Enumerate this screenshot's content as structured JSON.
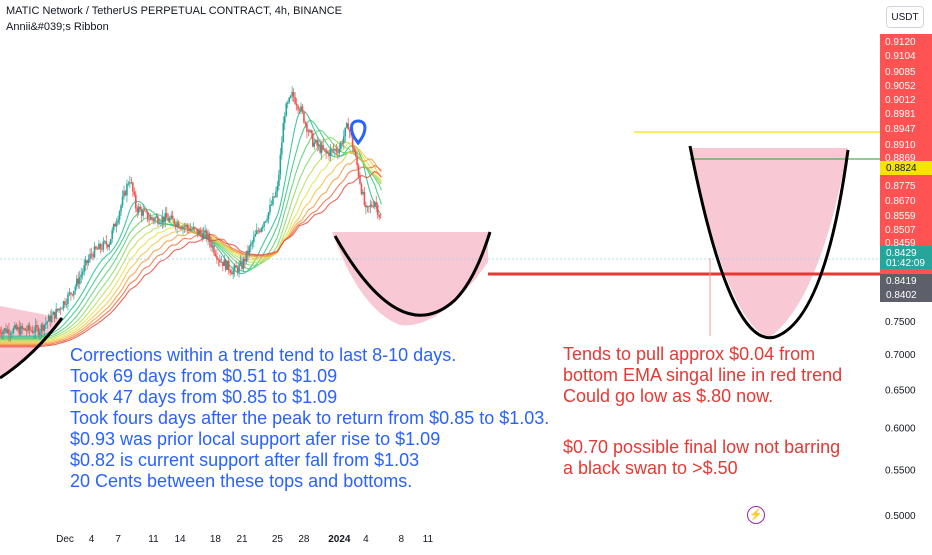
{
  "header": {
    "title": "MATIC Network / TetherUS PERPETUAL CONTRACT, 4h, BINANCE",
    "indicator": "Annii&#039;s Ribbon",
    "currency_button": "USDT"
  },
  "notes": {
    "left": [
      "Corrections within a trend tend to last 8-10 days.",
      "Took 69 days from $0.51 to $1.09",
      "Took 47 days from $0.85 to $1.09",
      "Took fours days after the peak to return from $0.85 to $1.03.",
      "$0.93 was prior local support afer rise to $1.09",
      "$0.82 is current support after fall from $1.03",
      "20 Cents between these tops and bottoms."
    ],
    "right_a": [
      "Tends to pull approx $0.04 from",
      "bottom EMA singal line in red trend",
      "Could go low as $.80 now."
    ],
    "right_b": [
      "$0.70 possible final low not barring",
      "a black swan to >$.50"
    ]
  },
  "colors": {
    "up": "#26a69a",
    "down": "#ef5350",
    "ribbon_green": "#2ec27e",
    "ribbon_yellow": "#f5d90a",
    "ribbon_red": "#f0453a",
    "pink_fill": "#f8c8d4",
    "blue_text": "#2962ff",
    "red_text": "#e53935"
  },
  "chart_data": {
    "type": "candlestick",
    "symbol": "MATICUSDT.P",
    "timeframe": "4h",
    "exchange": "BINANCE",
    "y_scale": "log",
    "ylim": [
      0.44,
      0.93
    ],
    "y_ticks": [
      0.912,
      0.9104,
      0.9085,
      0.9052,
      0.9012,
      0.8981,
      0.8947,
      0.891,
      0.8869,
      0.8775,
      0.867,
      0.8559,
      0.8507,
      0.8459,
      0.8419,
      0.8402,
      0.75,
      0.7,
      0.65,
      0.6,
      0.55,
      0.5,
      0.45
    ],
    "x_ticks": [
      {
        "label": "Dec",
        "day": 0
      },
      {
        "label": "4",
        "day": 3
      },
      {
        "label": "7",
        "day": 6
      },
      {
        "label": "11",
        "day": 10
      },
      {
        "label": "14",
        "day": 13
      },
      {
        "label": "18",
        "day": 17
      },
      {
        "label": "21",
        "day": 20
      },
      {
        "label": "25",
        "day": 24
      },
      {
        "label": "28",
        "day": 27
      },
      {
        "label": "2024",
        "day": 31,
        "bold": true
      },
      {
        "label": "4",
        "day": 34
      },
      {
        "label": "8",
        "day": 38
      },
      {
        "label": "11",
        "day": 41
      }
    ],
    "price_path": [
      {
        "day": -3.0,
        "price": 0.66
      },
      {
        "day": -1.0,
        "price": 0.69
      },
      {
        "day": 1.0,
        "price": 0.73
      },
      {
        "day": 3.0,
        "price": 0.79
      },
      {
        "day": 5.0,
        "price": 0.81
      },
      {
        "day": 6.5,
        "price": 0.88
      },
      {
        "day": 7.3,
        "price": 0.92
      },
      {
        "day": 8.0,
        "price": 0.87
      },
      {
        "day": 9.5,
        "price": 0.85
      },
      {
        "day": 11.5,
        "price": 0.85
      },
      {
        "day": 13.0,
        "price": 0.84
      },
      {
        "day": 14.5,
        "price": 0.83
      },
      {
        "day": 16.0,
        "price": 0.82
      },
      {
        "day": 17.5,
        "price": 0.78
      },
      {
        "day": 19.0,
        "price": 0.76
      },
      {
        "day": 20.0,
        "price": 0.77
      },
      {
        "day": 21.5,
        "price": 0.82
      },
      {
        "day": 23.0,
        "price": 0.86
      },
      {
        "day": 24.0,
        "price": 0.9
      },
      {
        "day": 24.8,
        "price": 1.03
      },
      {
        "day": 25.7,
        "price": 1.06
      },
      {
        "day": 26.5,
        "price": 1.04
      },
      {
        "day": 28.0,
        "price": 0.98
      },
      {
        "day": 29.5,
        "price": 0.96
      },
      {
        "day": 31.0,
        "price": 0.97
      },
      {
        "day": 32.0,
        "price": 1.01
      },
      {
        "day": 33.0,
        "price": 0.94
      },
      {
        "day": 34.0,
        "price": 0.86
      },
      {
        "day": 35.0,
        "price": 0.88
      },
      {
        "day": 35.8,
        "price": 0.843
      }
    ],
    "price_labels": [
      {
        "price": 0.8824,
        "text": "0.8824",
        "bg": "#f5e400",
        "fg": "#131722"
      },
      {
        "price": 0.8429,
        "text": "0.8429",
        "sub": "01:42:09",
        "bg": "#26a69a",
        "fg": "#ffffff"
      },
      {
        "price": 0.8419,
        "text": "0.8419",
        "bg": "#5d606b",
        "fg": "#ffffff"
      },
      {
        "price": 0.8402,
        "text": "0.8402",
        "bg": "#5d606b",
        "fg": "#ffffff"
      }
    ],
    "horizontal_lines": [
      {
        "price": 1.03,
        "color": "#f5e400"
      },
      {
        "price": 0.965,
        "color": "#4caf50"
      },
      {
        "price": 0.82,
        "color": "#e53935"
      }
    ],
    "marker": {
      "day": 32.0,
      "price": 1.01
    }
  }
}
